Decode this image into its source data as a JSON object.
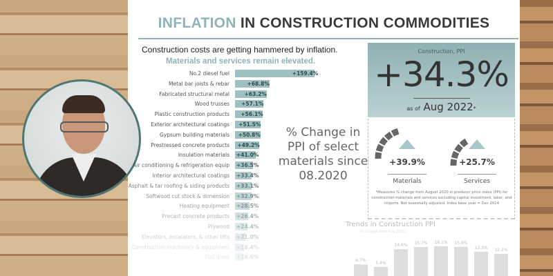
{
  "title": {
    "accent": "INFLATION",
    "rest": "IN CONSTRUCTION COMMODITIES"
  },
  "headline": "Construction costs are getting hammered by inflation.",
  "subhead": "Materials and services remain elevated.",
  "big_caption": "% Change in PPI of select materials since 08.2020",
  "colors": {
    "accent": "#8fb3b8",
    "bar": "#9fbfc2",
    "text": "#333333"
  },
  "ppi": {
    "label": "Construction, PPI",
    "value": "+34.3%",
    "as_of_prefix": "as of",
    "as_of": "Aug 2022",
    "asterisk": "*"
  },
  "gauges": [
    {
      "value": "+39.9%",
      "name": "Materials",
      "direction": "up"
    },
    {
      "value": "+25.7%",
      "name": "Services",
      "direction": "up"
    }
  ],
  "footnote": "*Measures % change from August 2020 in producer price index (PPI) for construction materials and services excluding capital investment, labor, and imports. Not seasonally adjusted. Index base year = Dec 2014",
  "chart_data": [
    {
      "type": "bar",
      "orientation": "horizontal",
      "categories": [
        "No.2 diesel fuel",
        "Metal bar joists & rebar",
        "Fabricated structural metal",
        "Wood trusses",
        "Plastic construction products",
        "Exterior architectural coatings",
        "Gypsum building materials",
        "Prestressed concrete products",
        "Insulation materials",
        "Air conditioning & refrigeration equip",
        "Interior architectural coatings",
        "Asphalt & tar roofing & siding products",
        "Softwood cut stock & dimension",
        "Heating equipment",
        "Precast concrete products",
        "Plywood",
        "Elevators, escalators, & other lifts",
        "Construction machinery & equipment",
        "Flat glass"
      ],
      "values": [
        159.4,
        68.8,
        63.2,
        57.1,
        56.1,
        51.5,
        50.8,
        49.2,
        41.0,
        36.5,
        33.4,
        33.1,
        32.9,
        28.5,
        26.4,
        24.4,
        21.0,
        18.4,
        18.6
      ],
      "labels": [
        "+159.4%",
        "+68.8%",
        "+63.2%",
        "+57.1%",
        "+56.1%",
        "+51.5%",
        "+50.8%",
        "+49.2%",
        "+41.0%",
        "+36.5%",
        "+33.4%",
        "+33.1%",
        "+32.9%",
        "+28.5%",
        "+26.4%",
        "+24.4%",
        "+21.0%",
        "+18.4%",
        "+18.6%"
      ],
      "unit": "%"
    },
    {
      "type": "bar",
      "title": "Trends in Construction PPI",
      "subtitle": "(% change from Aug 2021)",
      "values": [
        6.7,
        5.4,
        14.6,
        15.7,
        16.1,
        15.8,
        13.3,
        12.2
      ],
      "labels": [
        "6.7%",
        "5.4%",
        "14.6%",
        "15.7%",
        "16.1%",
        "15.8%",
        "13.3%",
        "12.2%"
      ],
      "unit": "%"
    }
  ]
}
